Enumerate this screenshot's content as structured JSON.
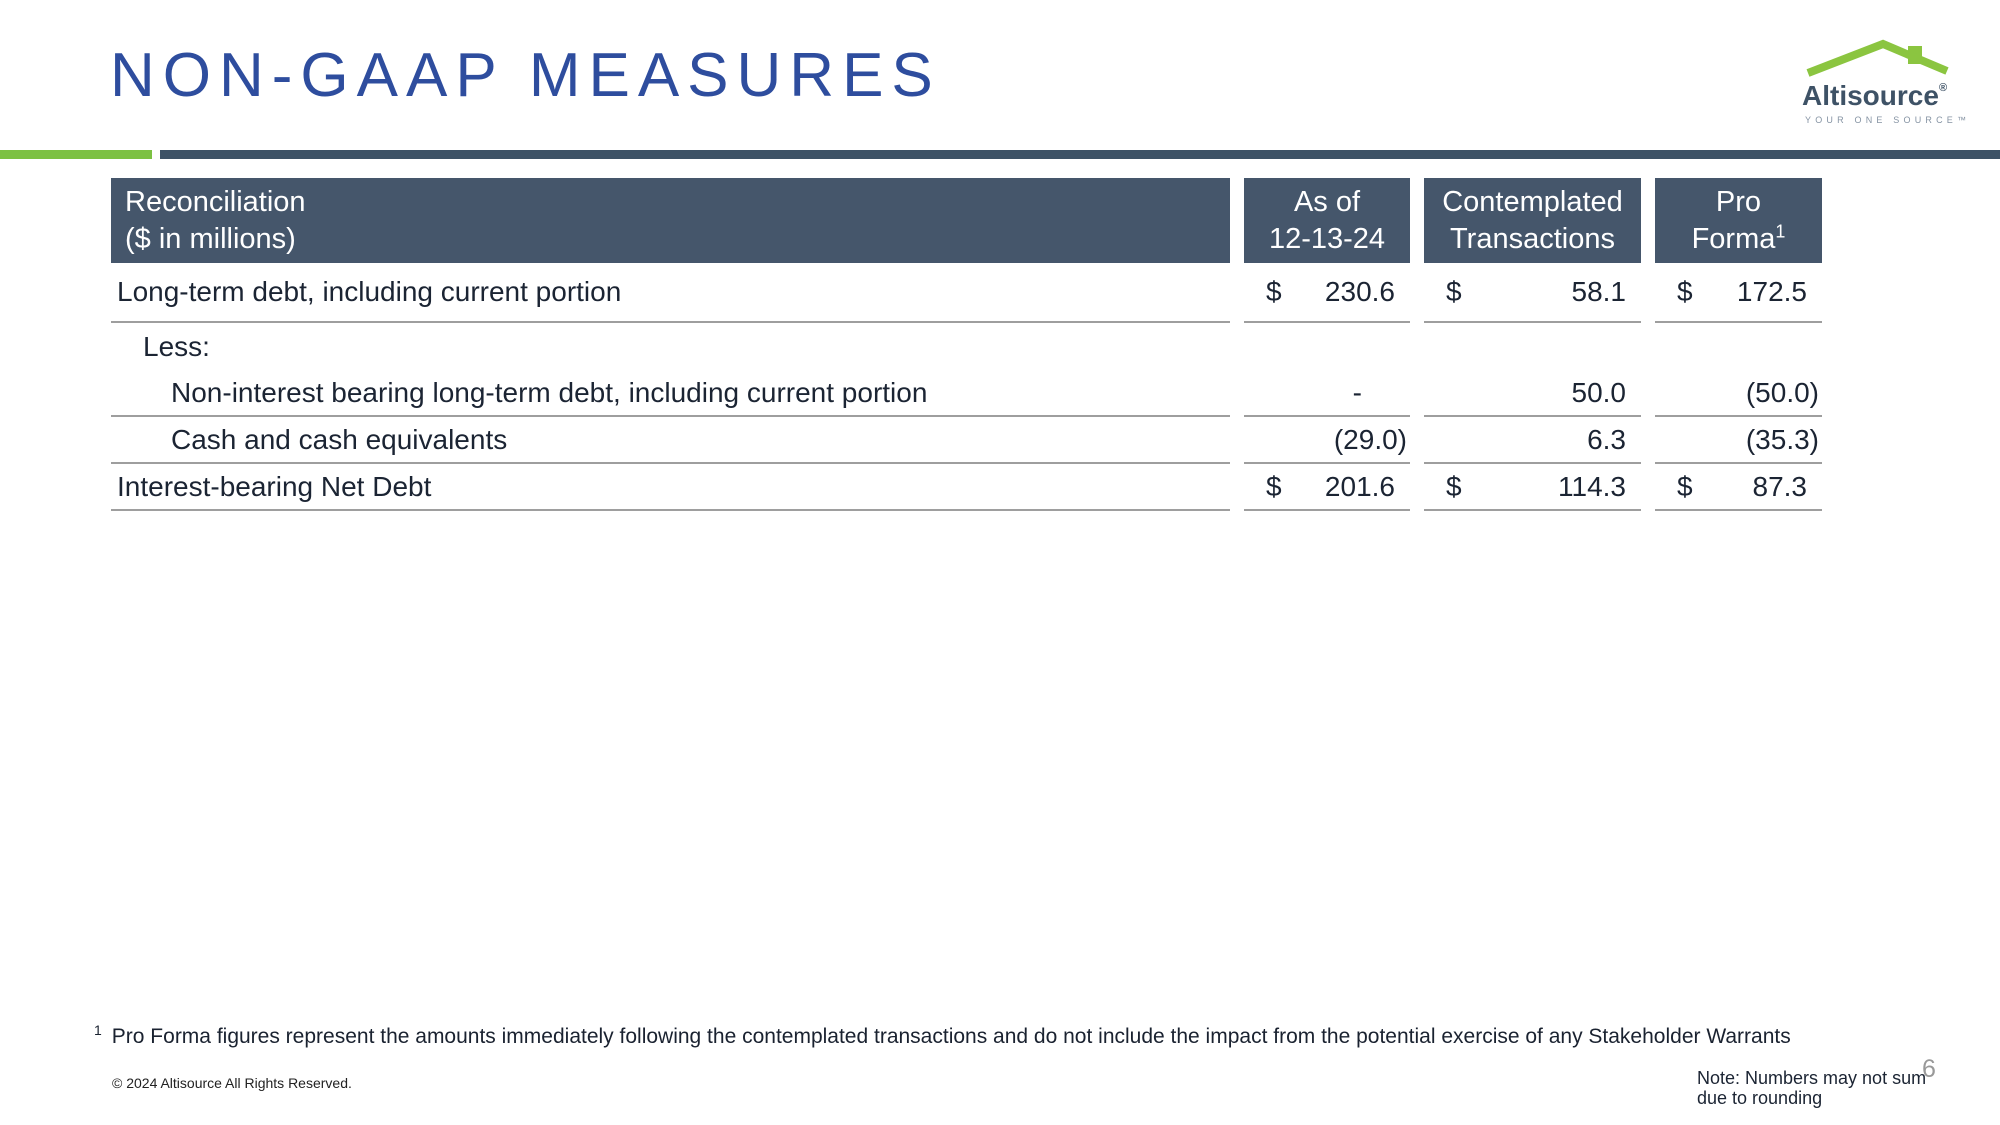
{
  "slide": {
    "title": "NON-GAAP MEASURES",
    "page_number": "6"
  },
  "logo": {
    "brand": "Altisource",
    "registered_mark": "®",
    "tagline": "YOUR ONE SOURCE™"
  },
  "table": {
    "header": {
      "label_line1": "Reconciliation",
      "label_line2": "($ in millions)",
      "col1_line1": "As of",
      "col1_line2": "12-13-24",
      "col2_line1": "Contemplated",
      "col2_line2": "Transactions",
      "col3_line1": "Pro",
      "col3_line2": "Forma",
      "col3_superscript": "1"
    },
    "rows": [
      {
        "label": "Long-term debt, including current portion",
        "indent": 0,
        "underline": true,
        "values": [
          {
            "currency": "$",
            "amount": "230.6"
          },
          {
            "currency": "$",
            "amount": "58.1"
          },
          {
            "currency": "$",
            "amount": "172.5"
          }
        ]
      },
      {
        "label": "Less:",
        "indent": 1,
        "underline": false,
        "values": [
          null,
          null,
          null
        ]
      },
      {
        "label": "Non-interest bearing long-term debt, including current portion",
        "indent": 2,
        "underline": true,
        "values": [
          {
            "amount": "-"
          },
          {
            "amount": "50.0"
          },
          {
            "amount": "(50.0)"
          }
        ]
      },
      {
        "label": "Cash and cash equivalents",
        "indent": 2,
        "underline": true,
        "values": [
          {
            "amount": "(29.0)"
          },
          {
            "amount": "6.3"
          },
          {
            "amount": "(35.3)"
          }
        ]
      },
      {
        "label": "Interest-bearing Net Debt",
        "indent": 0,
        "underline": true,
        "values": [
          {
            "currency": "$",
            "amount": "201.6"
          },
          {
            "currency": "$",
            "amount": "114.3"
          },
          {
            "currency": "$",
            "amount": "87.3"
          }
        ]
      }
    ]
  },
  "footnote": {
    "marker": "1",
    "text": "Pro Forma figures represent the amounts immediately following the contemplated transactions and do not include the impact from the potential exercise of any Stakeholder Warrants"
  },
  "footer": {
    "copyright": "© 2024 Altisource All Rights Reserved.",
    "note_line1": "Note: Numbers may not sum",
    "note_line2": "due to rounding"
  },
  "colors": {
    "title_blue": "#2E4D9E",
    "accent_green": "#7CC142",
    "logo_green": "#8BC540",
    "slate_bar": "#3E5266",
    "table_header_bg": "#45566B",
    "table_header_text": "#FFFFFF",
    "body_text": "#1B2433",
    "underline_gray": "#9E9E9E",
    "page_number_gray": "#999999"
  }
}
